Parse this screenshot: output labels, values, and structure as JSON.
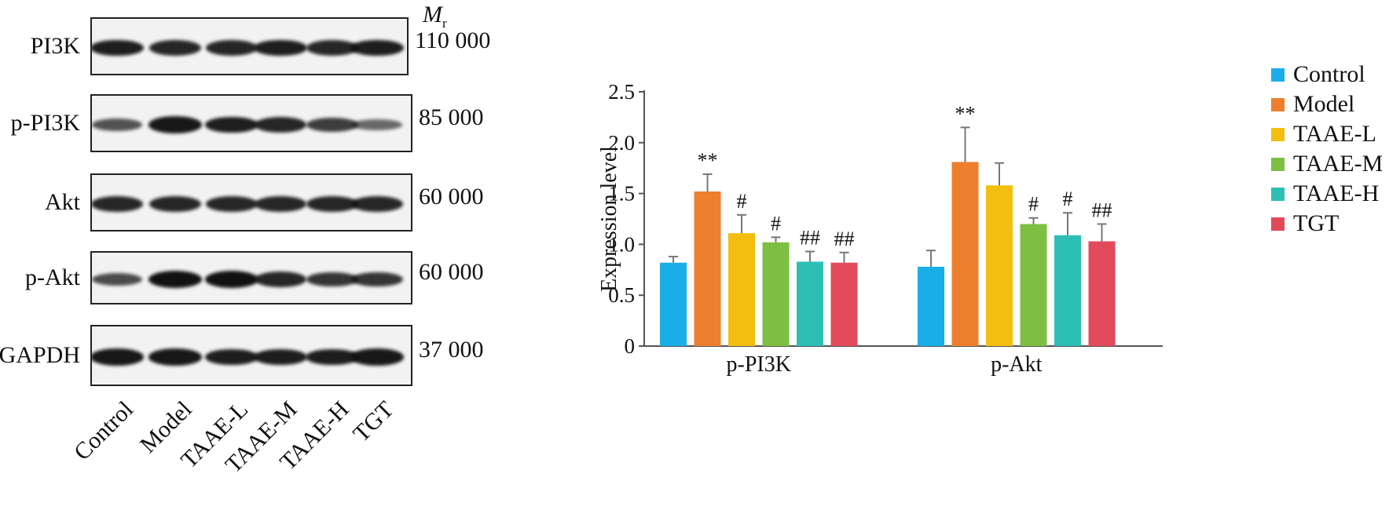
{
  "blot": {
    "mr_label": "M",
    "mr_sub": "r",
    "rows": [
      {
        "protein": "PI3K",
        "mw": "110 000"
      },
      {
        "protein": "p-PI3K",
        "mw": "85 000"
      },
      {
        "protein": "Akt",
        "mw": "60 000"
      },
      {
        "protein": "p-Akt",
        "mw": "60 000"
      },
      {
        "protein": "GAPDH",
        "mw": "37 000"
      }
    ],
    "lanes": [
      "Control",
      "Model",
      "TAAE-L",
      "TAAE-M",
      "TAAE-H",
      "TGT"
    ],
    "intensities": [
      [
        0.9,
        0.85,
        0.85,
        0.9,
        0.85,
        0.9
      ],
      [
        0.55,
        0.95,
        0.9,
        0.85,
        0.7,
        0.4
      ],
      [
        0.85,
        0.85,
        0.85,
        0.85,
        0.85,
        0.85
      ],
      [
        0.6,
        1.0,
        1.0,
        0.85,
        0.75,
        0.75
      ],
      [
        0.95,
        0.95,
        0.9,
        0.9,
        0.9,
        0.95
      ]
    ]
  },
  "colors": {
    "Control": "#1aaee8",
    "Model": "#ee7f2d",
    "TAAE-L": "#f3be0f",
    "TAAE-M": "#7cbf42",
    "TAAE-H": "#2dbfb5",
    "TGT": "#e24a5c",
    "axis": "#555555",
    "error": "#777777"
  },
  "chart_data": {
    "type": "bar",
    "ylabel": "Expression level",
    "xlabel": "",
    "ylim": [
      0,
      2.5
    ],
    "yticks": [
      "0",
      "0.5",
      "1.0",
      "1.5",
      "2.0",
      "2.5"
    ],
    "categories": [
      "p-PI3K",
      "p-Akt"
    ],
    "legend_position": "top-right",
    "series": [
      {
        "name": "Control",
        "values": [
          0.82,
          0.78
        ],
        "errors": [
          0.06,
          0.16
        ],
        "annotations": [
          "",
          ""
        ]
      },
      {
        "name": "Model",
        "values": [
          1.52,
          1.81
        ],
        "errors": [
          0.17,
          0.34
        ],
        "annotations": [
          "**",
          "**"
        ]
      },
      {
        "name": "TAAE-L",
        "values": [
          1.11,
          1.58
        ],
        "errors": [
          0.18,
          0.22
        ],
        "annotations": [
          "#",
          ""
        ]
      },
      {
        "name": "TAAE-M",
        "values": [
          1.02,
          1.2
        ],
        "errors": [
          0.05,
          0.06
        ],
        "annotations": [
          "#",
          "#"
        ]
      },
      {
        "name": "TAAE-H",
        "values": [
          0.83,
          1.09
        ],
        "errors": [
          0.1,
          0.22
        ],
        "annotations": [
          "##",
          "#"
        ]
      },
      {
        "name": "TGT",
        "values": [
          0.82,
          1.03
        ],
        "errors": [
          0.1,
          0.17
        ],
        "annotations": [
          "##",
          "##"
        ]
      }
    ]
  }
}
